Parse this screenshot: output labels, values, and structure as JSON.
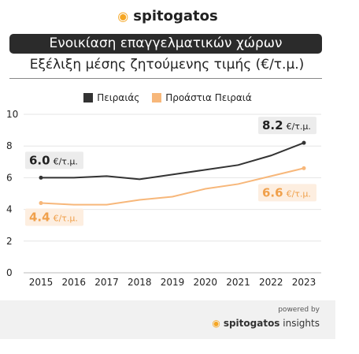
{
  "header": {
    "brand": "spitogatos",
    "brand_icon": "cat-icon",
    "title": "Ενοικίαση επαγγελματικών χώρων",
    "subtitle": "Εξέλιξη μέσης ζητούμενης τιμής (€/τ.μ.)"
  },
  "chart_data": {
    "type": "line",
    "x": [
      2015,
      2016,
      2017,
      2018,
      2019,
      2020,
      2021,
      2022,
      2023
    ],
    "ylim": [
      0,
      10
    ],
    "yticks": [
      0,
      2,
      4,
      6,
      8,
      10
    ],
    "grid": true,
    "legend_position": "top",
    "series": [
      {
        "name": "Πειραιάς",
        "color": "#333333",
        "values": [
          6.0,
          6.0,
          6.1,
          5.9,
          6.2,
          6.5,
          6.8,
          7.4,
          8.2
        ]
      },
      {
        "name": "Προάστια Πειραιά",
        "color": "#f7b77a",
        "values": [
          4.4,
          4.3,
          4.3,
          4.6,
          4.8,
          5.3,
          5.6,
          6.1,
          6.6
        ]
      }
    ],
    "annotations": [
      {
        "series": 0,
        "year": 2015,
        "value": "6.0",
        "unit": "€/τ.μ."
      },
      {
        "series": 0,
        "year": 2023,
        "value": "8.2",
        "unit": "€/τ.μ."
      },
      {
        "series": 1,
        "year": 2015,
        "value": "4.4",
        "unit": "€/τ.μ."
      },
      {
        "series": 1,
        "year": 2023,
        "value": "6.6",
        "unit": "€/τ.μ."
      }
    ],
    "label_bg": {
      "dark": "#ececec",
      "light": "#fdeee0"
    },
    "label_text_color": {
      "dark": "#222222",
      "light": "#f0a04b"
    }
  },
  "footer": {
    "powered_by": "powered by",
    "brand": "spitogatos",
    "brand_suffix": "insights"
  }
}
